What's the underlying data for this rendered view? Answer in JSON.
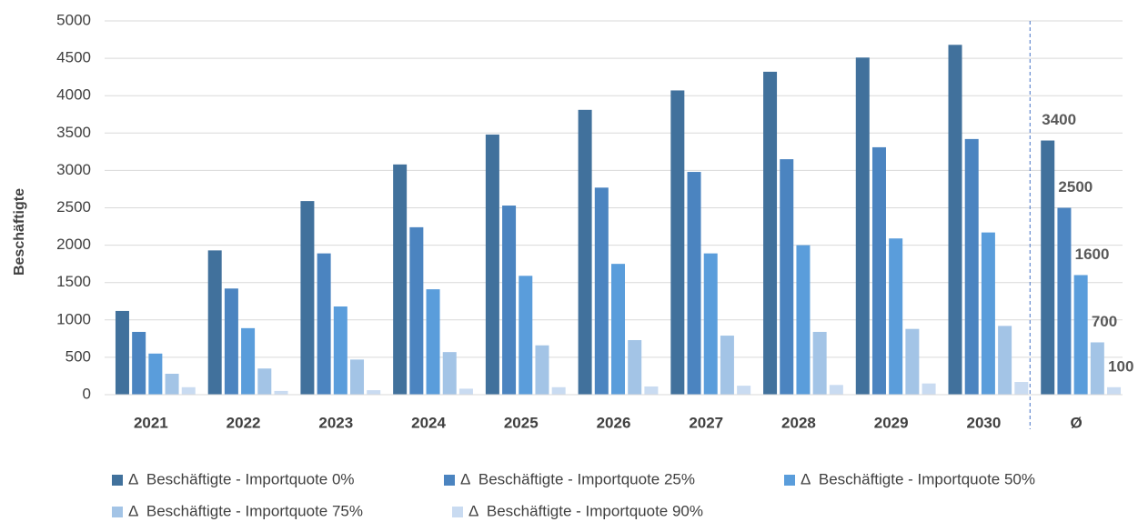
{
  "chart_data": {
    "type": "bar",
    "y_label": "Beschäftigte",
    "categories": [
      "2021",
      "2022",
      "2023",
      "2024",
      "2025",
      "2026",
      "2027",
      "2028",
      "2029",
      "2030",
      "Ø"
    ],
    "series": [
      {
        "name": "Δ  Beschäftigte - Importquote 0%",
        "color": "#41719c",
        "values": [
          1120,
          1930,
          2590,
          3080,
          3480,
          3810,
          4070,
          4320,
          4510,
          4680,
          3400
        ]
      },
      {
        "name": "Δ  Beschäftigte - Importquote 25%",
        "color": "#4b84c0",
        "values": [
          840,
          1420,
          1890,
          2240,
          2530,
          2770,
          2980,
          3150,
          3310,
          3420,
          2500
        ]
      },
      {
        "name": "Δ  Beschäftigte - Importquote 50%",
        "color": "#5a9ddb",
        "values": [
          550,
          890,
          1180,
          1410,
          1590,
          1750,
          1890,
          2000,
          2090,
          2170,
          1600
        ]
      },
      {
        "name": "Δ  Beschäftigte - Importquote 75%",
        "color": "#a3c4e6",
        "values": [
          280,
          350,
          470,
          570,
          660,
          730,
          790,
          840,
          880,
          920,
          700
        ]
      },
      {
        "name": "Δ  Beschäftigte - Importquote 90%",
        "color": "#c9dbf1",
        "values": [
          100,
          50,
          60,
          80,
          100,
          110,
          120,
          130,
          150,
          170,
          100
        ]
      }
    ],
    "ylim": [
      0,
      5000
    ],
    "yticks": [
      0,
      500,
      1000,
      1500,
      2000,
      2500,
      3000,
      3500,
      4000,
      4500,
      5000
    ],
    "grid": true,
    "data_labels": "last",
    "legend": "bottom"
  }
}
